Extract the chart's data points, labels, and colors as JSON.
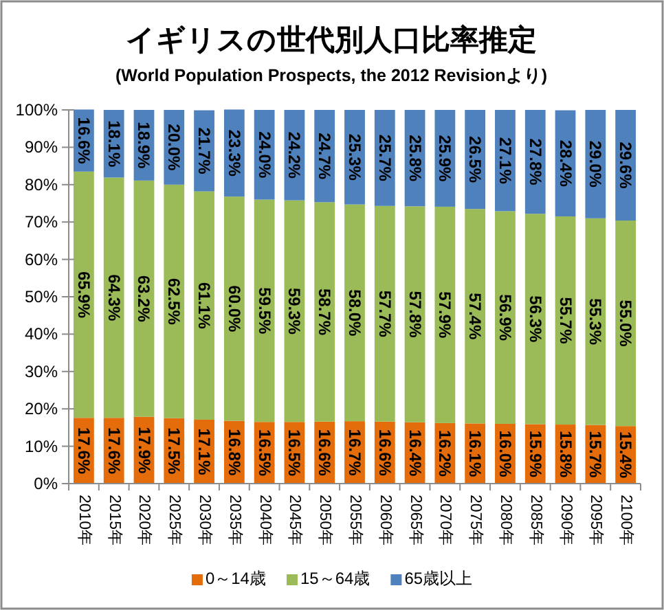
{
  "chart_data": {
    "type": "bar",
    "stacked": true,
    "title": "イギリスの世代別人口比率推定",
    "subtitle": "(World Population Prospects, the 2012 Revisionより)",
    "categories": [
      "2010年",
      "2015年",
      "2020年",
      "2025年",
      "2030年",
      "2035年",
      "2040年",
      "2045年",
      "2050年",
      "2055年",
      "2060年",
      "2065年",
      "2070年",
      "2075年",
      "2080年",
      "2085年",
      "2090年",
      "2095年",
      "2100年"
    ],
    "series": [
      {
        "name": "0～14歳",
        "color": "#e46c0a",
        "values": [
          17.6,
          17.6,
          17.9,
          17.5,
          17.1,
          16.8,
          16.5,
          16.5,
          16.6,
          16.7,
          16.6,
          16.4,
          16.2,
          16.1,
          16.0,
          15.9,
          15.8,
          15.7,
          15.4
        ],
        "value_labels": [
          "17.6%",
          "17.6%",
          "17.9%",
          "17.5%",
          "17.1%",
          "16.8%",
          "16.5%",
          "16.5%",
          "16.6%",
          "16.7%",
          "16.6%",
          "16.4%",
          "16.2%",
          "16.1%",
          "16.0%",
          "15.9%",
          "15.8%",
          "15.7%",
          "15.4%"
        ]
      },
      {
        "name": "15～64歳",
        "color": "#9bbb59",
        "values": [
          65.9,
          64.3,
          63.2,
          62.5,
          61.1,
          60.0,
          59.5,
          59.3,
          58.7,
          58.0,
          57.7,
          57.8,
          57.9,
          57.4,
          56.9,
          56.3,
          55.7,
          55.3,
          55.0
        ],
        "value_labels": [
          "65.9%",
          "64.3%",
          "63.2%",
          "62.5%",
          "61.1%",
          "60.0%",
          "59.5%",
          "59.3%",
          "58.7%",
          "58.0%",
          "57.7%",
          "57.8%",
          "57.9%",
          "57.4%",
          "56.9%",
          "56.3%",
          "55.7%",
          "55.3%",
          "55.0%"
        ]
      },
      {
        "name": "65歳以上",
        "color": "#4f81bd",
        "values": [
          16.6,
          18.1,
          18.9,
          20.0,
          21.7,
          23.3,
          24.0,
          24.2,
          24.7,
          25.3,
          25.7,
          25.8,
          25.9,
          26.5,
          27.1,
          27.8,
          28.4,
          29.0,
          29.6
        ],
        "value_labels": [
          "16.6%",
          "18.1%",
          "18.9%",
          "20.0%",
          "21.7%",
          "23.3%",
          "24.0%",
          "24.2%",
          "24.7%",
          "25.3%",
          "25.7%",
          "25.8%",
          "25.9%",
          "26.5%",
          "27.1%",
          "27.8%",
          "28.4%",
          "29.0%",
          "29.6%"
        ]
      }
    ],
    "ylim": [
      0,
      100
    ],
    "yticks": [
      {
        "value": 0,
        "label": "0%"
      },
      {
        "value": 10,
        "label": "10%"
      },
      {
        "value": 20,
        "label": "20%"
      },
      {
        "value": 30,
        "label": "30%"
      },
      {
        "value": 40,
        "label": "40%"
      },
      {
        "value": 50,
        "label": "50%"
      },
      {
        "value": 60,
        "label": "60%"
      },
      {
        "value": 70,
        "label": "70%"
      },
      {
        "value": 80,
        "label": "80%"
      },
      {
        "value": 90,
        "label": "90%"
      },
      {
        "value": 100,
        "label": "100%"
      }
    ],
    "legend": "bottom"
  }
}
